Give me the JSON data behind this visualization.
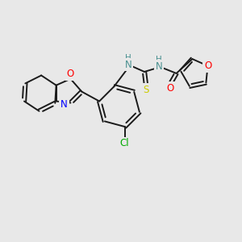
{
  "background_color": "#e8e8e8",
  "bond_color": "#1a1a1a",
  "atom_colors": {
    "O": "#ff0000",
    "N": "#4a9090",
    "S": "#cccc00",
    "Cl": "#00aa00",
    "N_blue": "#0000ff"
  },
  "figsize": [
    3.0,
    3.0
  ],
  "dpi": 100
}
